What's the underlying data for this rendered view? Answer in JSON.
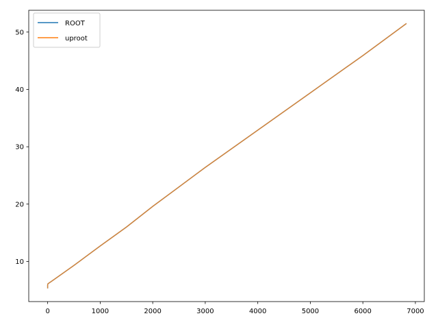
{
  "chart_data": {
    "type": "line",
    "title": "",
    "xlabel": "",
    "ylabel": "",
    "xlim": [
      -360,
      7170
    ],
    "ylim": [
      3.0,
      53.8
    ],
    "xticks": [
      0,
      1000,
      2000,
      3000,
      4000,
      5000,
      6000,
      7000
    ],
    "xtick_labels": [
      "0",
      "1000",
      "2000",
      "3000",
      "4000",
      "5000",
      "6000",
      "7000"
    ],
    "yticks": [
      10,
      20,
      30,
      40,
      50
    ],
    "ytick_labels": [
      "10",
      "20",
      "30",
      "40",
      "50"
    ],
    "grid": false,
    "legend_position": "upper-left",
    "series": [
      {
        "name": "ROOT",
        "color": "#1f77b4",
        "x": [
          0,
          0,
          5,
          20,
          100,
          500,
          1000,
          1500,
          2000,
          3000,
          4000,
          5000,
          6000,
          6830
        ],
        "y": [
          5.3,
          5.9,
          6.1,
          6.2,
          6.7,
          9.3,
          12.7,
          16.0,
          19.6,
          26.4,
          32.9,
          39.4,
          45.9,
          51.5
        ]
      },
      {
        "name": "uproot",
        "color": "#ff7f0e",
        "x": [
          0,
          0,
          5,
          20,
          100,
          500,
          1000,
          1500,
          2000,
          3000,
          4000,
          5000,
          6000,
          6830
        ],
        "y": [
          5.3,
          5.9,
          6.1,
          6.2,
          6.7,
          9.3,
          12.7,
          16.0,
          19.6,
          26.4,
          32.9,
          39.4,
          45.9,
          51.5
        ]
      }
    ]
  }
}
